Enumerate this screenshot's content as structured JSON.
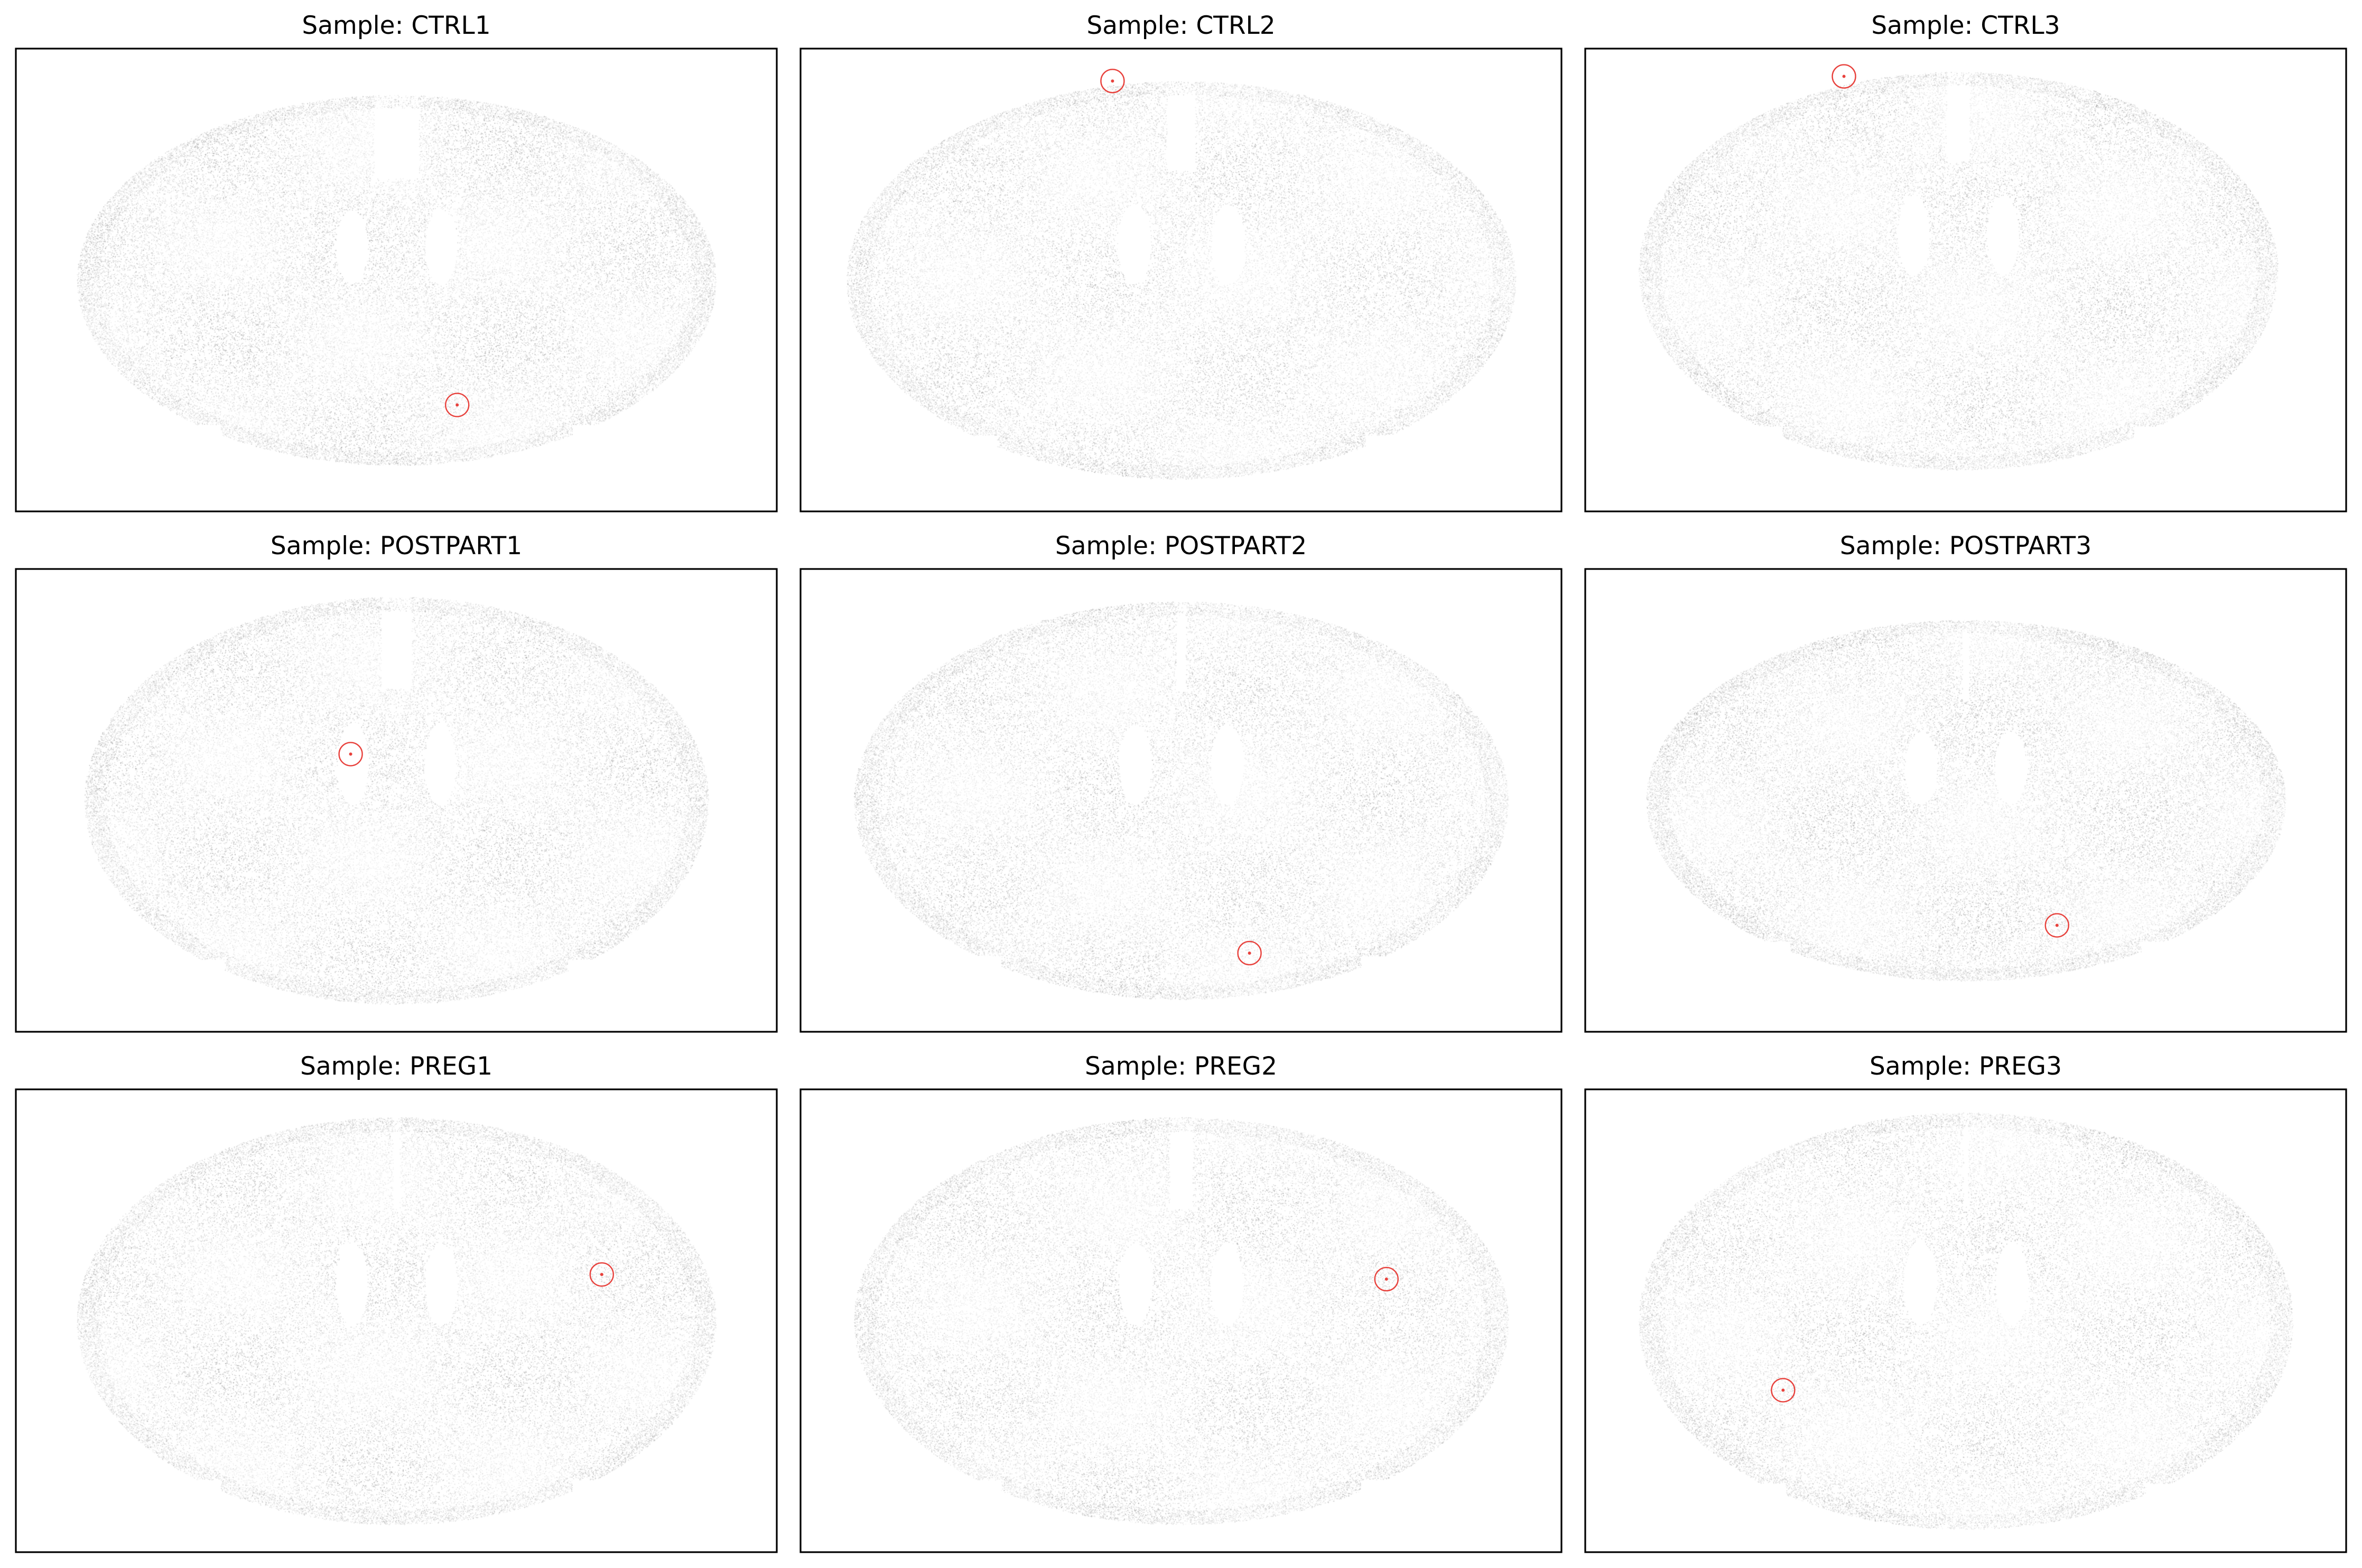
{
  "chart_data": [
    {
      "type": "scatter",
      "title": "Sample: CTRL1",
      "xlabel": "",
      "ylabel": "",
      "grid": false,
      "axis_ticks": false,
      "point_color": "#9a9a9a",
      "highlight": {
        "shape": "circle",
        "color": "#e8413c"
      }
    },
    {
      "type": "scatter",
      "title": "Sample: CTRL2",
      "xlabel": "",
      "ylabel": "",
      "grid": false,
      "axis_ticks": false,
      "point_color": "#9a9a9a",
      "highlight": {
        "shape": "circle",
        "color": "#e8413c"
      }
    },
    {
      "type": "scatter",
      "title": "Sample: CTRL3",
      "xlabel": "",
      "ylabel": "",
      "grid": false,
      "axis_ticks": false,
      "point_color": "#9a9a9a",
      "highlight": {
        "shape": "circle",
        "color": "#e8413c"
      }
    },
    {
      "type": "scatter",
      "title": "Sample: POSTPART1",
      "xlabel": "",
      "ylabel": "",
      "grid": false,
      "axis_ticks": false,
      "point_color": "#9a9a9a",
      "highlight": {
        "shape": "circle",
        "color": "#e8413c"
      }
    },
    {
      "type": "scatter",
      "title": "Sample: POSTPART2",
      "xlabel": "",
      "ylabel": "",
      "grid": false,
      "axis_ticks": false,
      "point_color": "#9a9a9a",
      "highlight": {
        "shape": "circle",
        "color": "#e8413c"
      }
    },
    {
      "type": "scatter",
      "title": "Sample: POSTPART3",
      "xlabel": "",
      "ylabel": "",
      "grid": false,
      "axis_ticks": false,
      "point_color": "#9a9a9a",
      "highlight": {
        "shape": "circle",
        "color": "#e8413c"
      }
    },
    {
      "type": "scatter",
      "title": "Sample: PREG1",
      "xlabel": "",
      "ylabel": "",
      "grid": false,
      "axis_ticks": false,
      "point_color": "#9a9a9a",
      "highlight": {
        "shape": "circle",
        "color": "#e8413c"
      }
    },
    {
      "type": "scatter",
      "title": "Sample: PREG2",
      "xlabel": "",
      "ylabel": "",
      "grid": false,
      "axis_ticks": false,
      "point_color": "#9a9a9a",
      "highlight": {
        "shape": "circle",
        "color": "#e8413c"
      }
    },
    {
      "type": "scatter",
      "title": "Sample: PREG3",
      "xlabel": "",
      "ylabel": "",
      "grid": false,
      "axis_ticks": false,
      "point_color": "#9a9a9a",
      "highlight": {
        "shape": "circle",
        "color": "#e8413c"
      }
    }
  ]
}
